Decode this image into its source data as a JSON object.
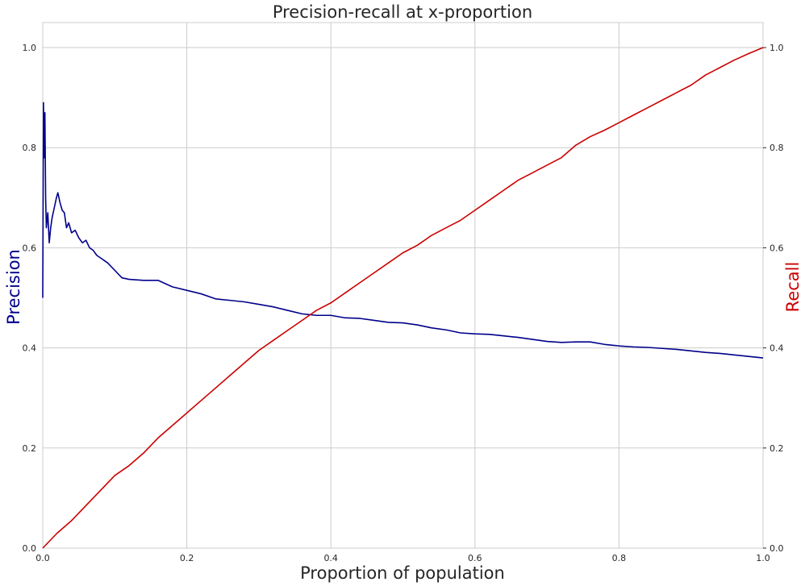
{
  "chart_data": {
    "type": "line",
    "title": "Precision-recall at x-proportion",
    "xlabel": "Proportion of population",
    "ylabel_left": "Precision",
    "ylabel_right": "Recall",
    "xlim": [
      0,
      1
    ],
    "ylim_left": [
      0,
      1.05
    ],
    "ylim_right": [
      0,
      1.05
    ],
    "x_ticks": [
      "0.0",
      "0.2",
      "0.4",
      "0.6",
      "0.8",
      "1.0"
    ],
    "y_left_ticks": [
      "0.0",
      "0.2",
      "0.4",
      "0.6",
      "0.8",
      "1.0"
    ],
    "y_right_ticks": [
      "0.0",
      "0.2",
      "0.4",
      "0.6",
      "0.8",
      "1.0"
    ],
    "grid": true,
    "colors": {
      "precision": "#00008b",
      "recall": "#cc0000",
      "grid": "#cccccc"
    },
    "series": [
      {
        "axis": "left",
        "color": "#00008b",
        "points": [
          [
            0.0,
            0.5
          ],
          [
            0.001,
            0.89
          ],
          [
            0.002,
            0.78
          ],
          [
            0.003,
            0.87
          ],
          [
            0.004,
            0.7
          ],
          [
            0.005,
            0.64
          ],
          [
            0.007,
            0.67
          ],
          [
            0.009,
            0.61
          ],
          [
            0.011,
            0.64
          ],
          [
            0.013,
            0.66
          ],
          [
            0.016,
            0.68
          ],
          [
            0.019,
            0.7
          ],
          [
            0.021,
            0.71
          ],
          [
            0.024,
            0.69
          ],
          [
            0.027,
            0.675
          ],
          [
            0.03,
            0.67
          ],
          [
            0.033,
            0.64
          ],
          [
            0.036,
            0.65
          ],
          [
            0.04,
            0.63
          ],
          [
            0.045,
            0.635
          ],
          [
            0.05,
            0.62
          ],
          [
            0.055,
            0.61
          ],
          [
            0.06,
            0.615
          ],
          [
            0.065,
            0.6
          ],
          [
            0.07,
            0.595
          ],
          [
            0.075,
            0.585
          ],
          [
            0.08,
            0.58
          ],
          [
            0.09,
            0.57
          ],
          [
            0.1,
            0.555
          ],
          [
            0.11,
            0.54
          ],
          [
            0.12,
            0.537
          ],
          [
            0.13,
            0.536
          ],
          [
            0.14,
            0.535
          ],
          [
            0.16,
            0.535
          ],
          [
            0.18,
            0.522
          ],
          [
            0.2,
            0.515
          ],
          [
            0.22,
            0.508
          ],
          [
            0.24,
            0.498
          ],
          [
            0.26,
            0.495
          ],
          [
            0.28,
            0.492
          ],
          [
            0.3,
            0.487
          ],
          [
            0.32,
            0.482
          ],
          [
            0.34,
            0.475
          ],
          [
            0.36,
            0.468
          ],
          [
            0.38,
            0.465
          ],
          [
            0.4,
            0.465
          ],
          [
            0.42,
            0.46
          ],
          [
            0.44,
            0.459
          ],
          [
            0.46,
            0.455
          ],
          [
            0.48,
            0.451
          ],
          [
            0.5,
            0.45
          ],
          [
            0.52,
            0.446
          ],
          [
            0.54,
            0.44
          ],
          [
            0.56,
            0.436
          ],
          [
            0.58,
            0.43
          ],
          [
            0.6,
            0.428
          ],
          [
            0.62,
            0.427
          ],
          [
            0.64,
            0.424
          ],
          [
            0.66,
            0.421
          ],
          [
            0.68,
            0.417
          ],
          [
            0.7,
            0.413
          ],
          [
            0.72,
            0.411
          ],
          [
            0.74,
            0.412
          ],
          [
            0.76,
            0.412
          ],
          [
            0.78,
            0.407
          ],
          [
            0.8,
            0.404
          ],
          [
            0.82,
            0.402
          ],
          [
            0.84,
            0.401
          ],
          [
            0.86,
            0.399
          ],
          [
            0.88,
            0.397
          ],
          [
            0.9,
            0.394
          ],
          [
            0.92,
            0.391
          ],
          [
            0.94,
            0.389
          ],
          [
            0.96,
            0.386
          ],
          [
            0.98,
            0.383
          ],
          [
            1.0,
            0.38
          ]
        ]
      },
      {
        "axis": "right",
        "color": "#cc0000",
        "points": [
          [
            0.0,
            0.0
          ],
          [
            0.02,
            0.03
          ],
          [
            0.04,
            0.055
          ],
          [
            0.06,
            0.085
          ],
          [
            0.08,
            0.115
          ],
          [
            0.1,
            0.145
          ],
          [
            0.12,
            0.165
          ],
          [
            0.14,
            0.19
          ],
          [
            0.16,
            0.22
          ],
          [
            0.18,
            0.245
          ],
          [
            0.2,
            0.27
          ],
          [
            0.22,
            0.295
          ],
          [
            0.24,
            0.32
          ],
          [
            0.26,
            0.345
          ],
          [
            0.28,
            0.37
          ],
          [
            0.3,
            0.395
          ],
          [
            0.32,
            0.415
          ],
          [
            0.34,
            0.435
          ],
          [
            0.36,
            0.455
          ],
          [
            0.38,
            0.475
          ],
          [
            0.4,
            0.49
          ],
          [
            0.42,
            0.51
          ],
          [
            0.44,
            0.53
          ],
          [
            0.46,
            0.55
          ],
          [
            0.48,
            0.57
          ],
          [
            0.5,
            0.59
          ],
          [
            0.52,
            0.605
          ],
          [
            0.54,
            0.625
          ],
          [
            0.56,
            0.64
          ],
          [
            0.58,
            0.655
          ],
          [
            0.6,
            0.675
          ],
          [
            0.62,
            0.695
          ],
          [
            0.64,
            0.715
          ],
          [
            0.66,
            0.735
          ],
          [
            0.68,
            0.75
          ],
          [
            0.7,
            0.765
          ],
          [
            0.72,
            0.78
          ],
          [
            0.74,
            0.805
          ],
          [
            0.76,
            0.822
          ],
          [
            0.78,
            0.835
          ],
          [
            0.8,
            0.85
          ],
          [
            0.82,
            0.865
          ],
          [
            0.84,
            0.88
          ],
          [
            0.86,
            0.895
          ],
          [
            0.88,
            0.91
          ],
          [
            0.9,
            0.925
          ],
          [
            0.92,
            0.945
          ],
          [
            0.94,
            0.96
          ],
          [
            0.96,
            0.975
          ],
          [
            0.98,
            0.988
          ],
          [
            1.0,
            1.0
          ]
        ]
      }
    ]
  }
}
